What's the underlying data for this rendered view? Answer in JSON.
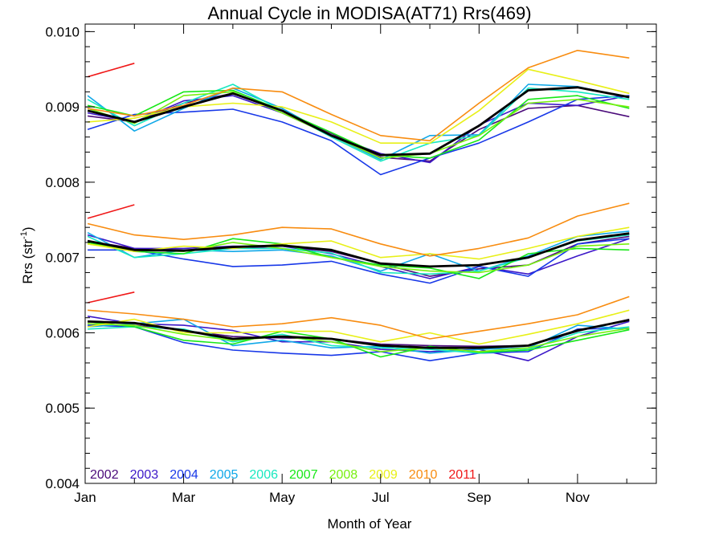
{
  "chart_data": {
    "type": "line",
    "title": "Annual Cycle in MODISA(AT71) Rrs(469)",
    "xlabel": "Month of Year",
    "ylabel_main": "Rrs (str",
    "ylabel_sup": "-1",
    "ylabel_close": ")",
    "xlim": [
      1,
      12.6
    ],
    "ylim": [
      0.004,
      0.0101
    ],
    "x_ticks": [
      {
        "x": 1,
        "label": "Jan"
      },
      {
        "x": 3,
        "label": "Mar"
      },
      {
        "x": 5,
        "label": "May"
      },
      {
        "x": 7,
        "label": "Jul"
      },
      {
        "x": 9,
        "label": "Sep"
      },
      {
        "x": 11,
        "label": "Nov"
      }
    ],
    "y_ticks": [
      {
        "y": 0.004,
        "label": "0.004"
      },
      {
        "y": 0.005,
        "label": "0.005"
      },
      {
        "y": 0.006,
        "label": "0.006"
      },
      {
        "y": 0.007,
        "label": "0.007"
      },
      {
        "y": 0.008,
        "label": "0.008"
      },
      {
        "y": 0.009,
        "label": "0.009"
      },
      {
        "y": 0.01,
        "label": "0.010"
      }
    ],
    "x": [
      1.05,
      2,
      3,
      4,
      5,
      6,
      7,
      8,
      9,
      10,
      11,
      12.05
    ],
    "legend_placement": "bottom-left",
    "series": [
      {
        "name": "2002",
        "color": "#4a0a7a",
        "groups": [
          [
            0.00888,
            0.0088,
            0.00905,
            0.00918,
            0.00895,
            0.00865,
            0.00833,
            0.00828,
            0.0087,
            0.00898,
            0.00902,
            0.00887
          ],
          [
            0.00722,
            0.00712,
            0.0071,
            0.00712,
            0.00715,
            0.00708,
            0.00692,
            0.00675,
            0.00685,
            0.0069,
            0.00718,
            0.00728
          ],
          [
            0.00612,
            0.0061,
            0.00603,
            0.00595,
            0.00593,
            0.00592,
            0.00585,
            0.00583,
            0.00582,
            0.00583,
            0.00602,
            0.00618
          ]
        ]
      },
      {
        "name": "2003",
        "color": "#3c18c8",
        "groups": [
          [
            0.00892,
            0.0088,
            0.00908,
            0.00915,
            0.00892,
            0.00862,
            0.00838,
            0.00826,
            0.00876,
            0.00905,
            0.00902,
            0.00915
          ],
          [
            0.0073,
            0.00712,
            0.00712,
            0.00715,
            0.00715,
            0.00705,
            0.00688,
            0.00672,
            0.00688,
            0.00678,
            0.00702,
            0.00725
          ],
          [
            0.00622,
            0.00612,
            0.0061,
            0.00603,
            0.00588,
            0.00588,
            0.00578,
            0.00575,
            0.00578,
            0.00563,
            0.00595,
            0.00615
          ]
        ]
      },
      {
        "name": "2004",
        "color": "#1838e8",
        "groups": [
          [
            0.0087,
            0.0089,
            0.00893,
            0.00897,
            0.0088,
            0.00855,
            0.0081,
            0.00832,
            0.00852,
            0.0088,
            0.0091,
            0.00915
          ],
          [
            0.0071,
            0.0071,
            0.00698,
            0.00688,
            0.0069,
            0.00695,
            0.00678,
            0.00666,
            0.00688,
            0.00675,
            0.00718,
            0.00725
          ],
          [
            0.0061,
            0.00608,
            0.00587,
            0.00577,
            0.00573,
            0.0057,
            0.00575,
            0.00563,
            0.00573,
            0.00575,
            0.00605,
            0.00606
          ]
        ]
      },
      {
        "name": "2005",
        "color": "#10a8e8",
        "groups": [
          [
            0.00915,
            0.00868,
            0.00898,
            0.00925,
            0.00898,
            0.00862,
            0.0083,
            0.00862,
            0.00863,
            0.0093,
            0.00927,
            0.00912
          ],
          [
            0.00733,
            0.007,
            0.0071,
            0.00708,
            0.0071,
            0.00702,
            0.00682,
            0.00705,
            0.00682,
            0.00702,
            0.00728,
            0.00735
          ],
          [
            0.00608,
            0.00612,
            0.00618,
            0.00583,
            0.0059,
            0.0058,
            0.00582,
            0.00573,
            0.00578,
            0.0058,
            0.0061,
            0.00605
          ]
        ]
      },
      {
        "name": "2006",
        "color": "#18e8c0",
        "groups": [
          [
            0.0091,
            0.00875,
            0.00905,
            0.0093,
            0.00895,
            0.0086,
            0.00828,
            0.00852,
            0.00862,
            0.00925,
            0.0092,
            0.0091
          ],
          [
            0.00728,
            0.007,
            0.00705,
            0.00712,
            0.00712,
            0.00706,
            0.0068,
            0.00678,
            0.00682,
            0.007,
            0.00722,
            0.0073
          ],
          [
            0.00605,
            0.00608,
            0.00605,
            0.00588,
            0.00598,
            0.00583,
            0.0058,
            0.00578,
            0.00573,
            0.00578,
            0.006,
            0.00608
          ]
        ]
      },
      {
        "name": "2007",
        "color": "#18e818",
        "groups": [
          [
            0.00902,
            0.00888,
            0.0092,
            0.00922,
            0.00895,
            0.00866,
            0.00836,
            0.00832,
            0.00856,
            0.0091,
            0.00915,
            0.00898
          ],
          [
            0.0072,
            0.00708,
            0.00705,
            0.00725,
            0.00718,
            0.007,
            0.0069,
            0.00686,
            0.00672,
            0.00705,
            0.00712,
            0.0071
          ],
          [
            0.00615,
            0.00608,
            0.0059,
            0.00585,
            0.00602,
            0.00592,
            0.00568,
            0.00582,
            0.00574,
            0.00577,
            0.0059,
            0.00604
          ]
        ]
      },
      {
        "name": "2008",
        "color": "#78f010",
        "groups": [
          [
            0.00898,
            0.00878,
            0.00915,
            0.0092,
            0.00892,
            0.00862,
            0.00832,
            0.00838,
            0.00862,
            0.00905,
            0.0091,
            0.009
          ],
          [
            0.00718,
            0.0071,
            0.00708,
            0.0072,
            0.00712,
            0.007,
            0.00688,
            0.00682,
            0.0068,
            0.0069,
            0.00715,
            0.00718
          ],
          [
            0.00612,
            0.0061,
            0.00598,
            0.0059,
            0.00595,
            0.00588,
            0.00575,
            0.0058,
            0.00575,
            0.0058,
            0.00595,
            0.00606
          ]
        ]
      },
      {
        "name": "2009",
        "color": "#e8f018",
        "groups": [
          [
            0.0088,
            0.00885,
            0.009,
            0.00905,
            0.009,
            0.0088,
            0.00852,
            0.00852,
            0.00895,
            0.0095,
            0.00935,
            0.00918
          ],
          [
            0.00718,
            0.00708,
            0.00715,
            0.00712,
            0.00718,
            0.00722,
            0.007,
            0.00705,
            0.00698,
            0.00712,
            0.00728,
            0.0074
          ],
          [
            0.00608,
            0.00618,
            0.006,
            0.006,
            0.00602,
            0.00602,
            0.00588,
            0.006,
            0.00585,
            0.00598,
            0.00612,
            0.0063
          ]
        ]
      },
      {
        "name": "2010",
        "color": "#f88c10",
        "groups": [
          [
            0.00898,
            0.00888,
            0.00902,
            0.00925,
            0.0092,
            0.0089,
            0.00862,
            0.00855,
            0.00905,
            0.00952,
            0.00975,
            0.00965
          ],
          [
            0.00745,
            0.0073,
            0.00724,
            0.0073,
            0.0074,
            0.00738,
            0.00718,
            0.00702,
            0.00712,
            0.00726,
            0.00755,
            0.00772
          ],
          [
            0.0063,
            0.00625,
            0.00618,
            0.00608,
            0.00612,
            0.0062,
            0.0061,
            0.00592,
            0.00602,
            0.00612,
            0.00624,
            0.00648
          ]
        ]
      },
      {
        "name": "2011",
        "color": "#f01818",
        "groups": [
          [
            0.0094,
            0.00958
          ],
          [
            0.00752,
            0.0077
          ],
          [
            0.0064,
            0.00654
          ]
        ]
      },
      {
        "name": "",
        "color": "#000000",
        "width": 2.8,
        "groups": [
          [
            0.00895,
            0.0088,
            0.009,
            0.00918,
            0.00895,
            0.00862,
            0.00836,
            0.00838,
            0.00875,
            0.00922,
            0.00926,
            0.00913
          ],
          [
            0.00722,
            0.0071,
            0.00709,
            0.00714,
            0.00716,
            0.0071,
            0.00692,
            0.00688,
            0.0069,
            0.007,
            0.00723,
            0.00732
          ],
          [
            0.00615,
            0.00613,
            0.00603,
            0.00592,
            0.00595,
            0.00592,
            0.00583,
            0.0058,
            0.0058,
            0.00583,
            0.00603,
            0.00617
          ]
        ]
      }
    ]
  }
}
